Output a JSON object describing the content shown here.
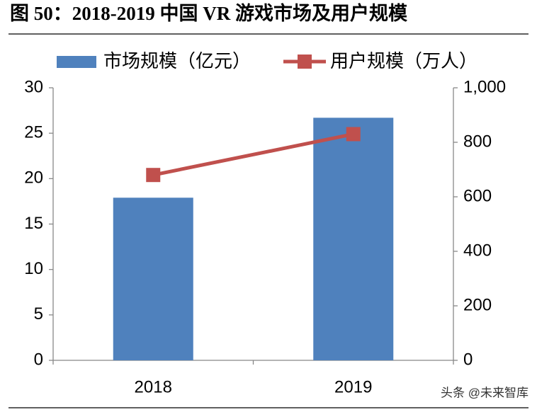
{
  "chart_data": {
    "type": "bar",
    "title": "图 50：2018-2019 中国 VR 游戏市场及用户规模",
    "categories": [
      "2018",
      "2019"
    ],
    "series": [
      {
        "name": "市场规模（亿元）",
        "color": "#4f81bd",
        "values": [
          17.9,
          26.7
        ]
      },
      {
        "name": "用户规模（万人）",
        "color": "#c0504d",
        "values": [
          680,
          830
        ],
        "axis": "y2",
        "type": "line"
      }
    ],
    "ylim": [
      0,
      30
    ],
    "yticks": [
      0,
      5,
      10,
      15,
      20,
      25,
      30
    ],
    "y2lim": [
      0,
      1000
    ],
    "y2ticks": [
      0,
      200,
      400,
      600,
      800,
      {
        "value": 1000,
        "label": "1,000"
      }
    ],
    "watermark": "头条 @未来智库"
  }
}
